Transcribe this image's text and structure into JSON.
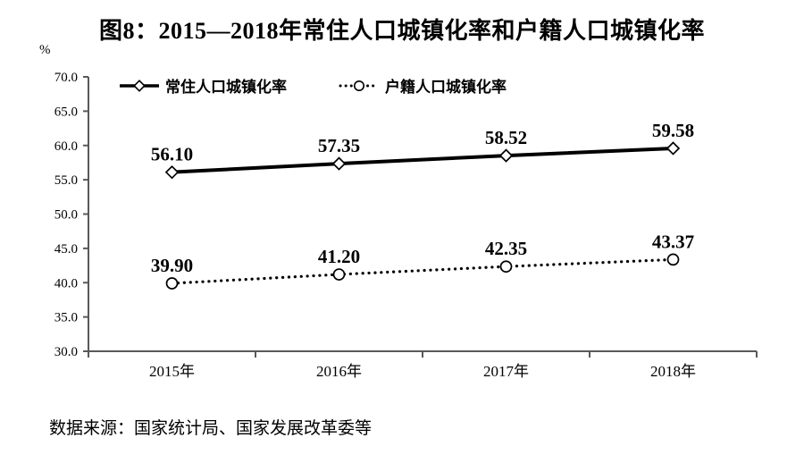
{
  "chart": {
    "title": "图8：2015—2018年常住人口城镇化率和户籍人口城镇化率",
    "source": "数据来源：国家统计局、国家发展改革委等",
    "y_axis_unit": "%"
  },
  "chart_data": {
    "type": "line",
    "title": "图8：2015—2018年常住人口城镇化率和户籍人口城镇化率",
    "categories": [
      "2015年",
      "2016年",
      "2017年",
      "2018年"
    ],
    "series": [
      {
        "name": "常住人口城镇化率",
        "values": [
          56.1,
          57.35,
          58.52,
          59.58
        ],
        "value_labels": [
          "56.10",
          "57.35",
          "58.52",
          "59.58"
        ],
        "line_style": "solid",
        "marker": "diamond",
        "color": "#000000"
      },
      {
        "name": "户籍人口城镇化率",
        "values": [
          39.9,
          41.2,
          42.35,
          43.37
        ],
        "value_labels": [
          "39.90",
          "41.20",
          "42.35",
          "43.37"
        ],
        "line_style": "dotted",
        "marker": "circle",
        "color": "#000000"
      }
    ],
    "ylabel": "%",
    "xlabel": "",
    "ylim": [
      30.0,
      70.0
    ],
    "ytick_step": 5.0,
    "ytick_labels": [
      "70.0",
      "65.0",
      "60.0",
      "55.0",
      "50.0",
      "45.0",
      "40.0",
      "35.0",
      "30.0"
    ],
    "grid": false,
    "legend_position": "top-left-inside",
    "colors": {
      "axis": "#595959",
      "text": "#000000",
      "marker_fill": "#ffffff"
    },
    "source": "数据来源：国家统计局、国家发展改革委等"
  }
}
